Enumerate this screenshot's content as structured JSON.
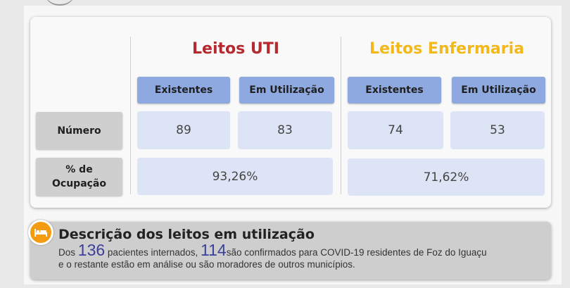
{
  "table": {
    "uti": {
      "title": "Leitos UTI",
      "col_existentes": "Existentes",
      "col_em_utilizacao": "Em Utilização",
      "numero_existentes": "89",
      "numero_em_utilizacao": "83",
      "ocupacao": "93,26%"
    },
    "enfermaria": {
      "title": "Leitos Enfermaria",
      "col_existentes": "Existentes",
      "col_em_utilizacao": "Em Utilização",
      "numero_existentes": "74",
      "numero_em_utilizacao": "53",
      "ocupacao": "71,62%"
    },
    "row_labels": {
      "numero": "Número",
      "ocupacao_line1": "% de",
      "ocupacao_line2": "Ocupação"
    }
  },
  "description": {
    "icon": "bed-icon",
    "title": "Descrição dos leitos em utilização",
    "text_prefix": "Dos",
    "total_patients": "136",
    "text_mid": "pacientes internados,",
    "confirmed": "114",
    "text_suffix_line1": "são confirmados para COVID-19 residentes de Foz do Iguaçu",
    "text_line2": "e o restante estão em análise ou são moradores de outros municípios."
  },
  "colors": {
    "uti_title": "#b42a30",
    "enfermaria_title": "#f3b81b",
    "header_blue": "#8ea9df",
    "cell_blue": "#dde4f5",
    "icon_orange": "#f39c12"
  }
}
